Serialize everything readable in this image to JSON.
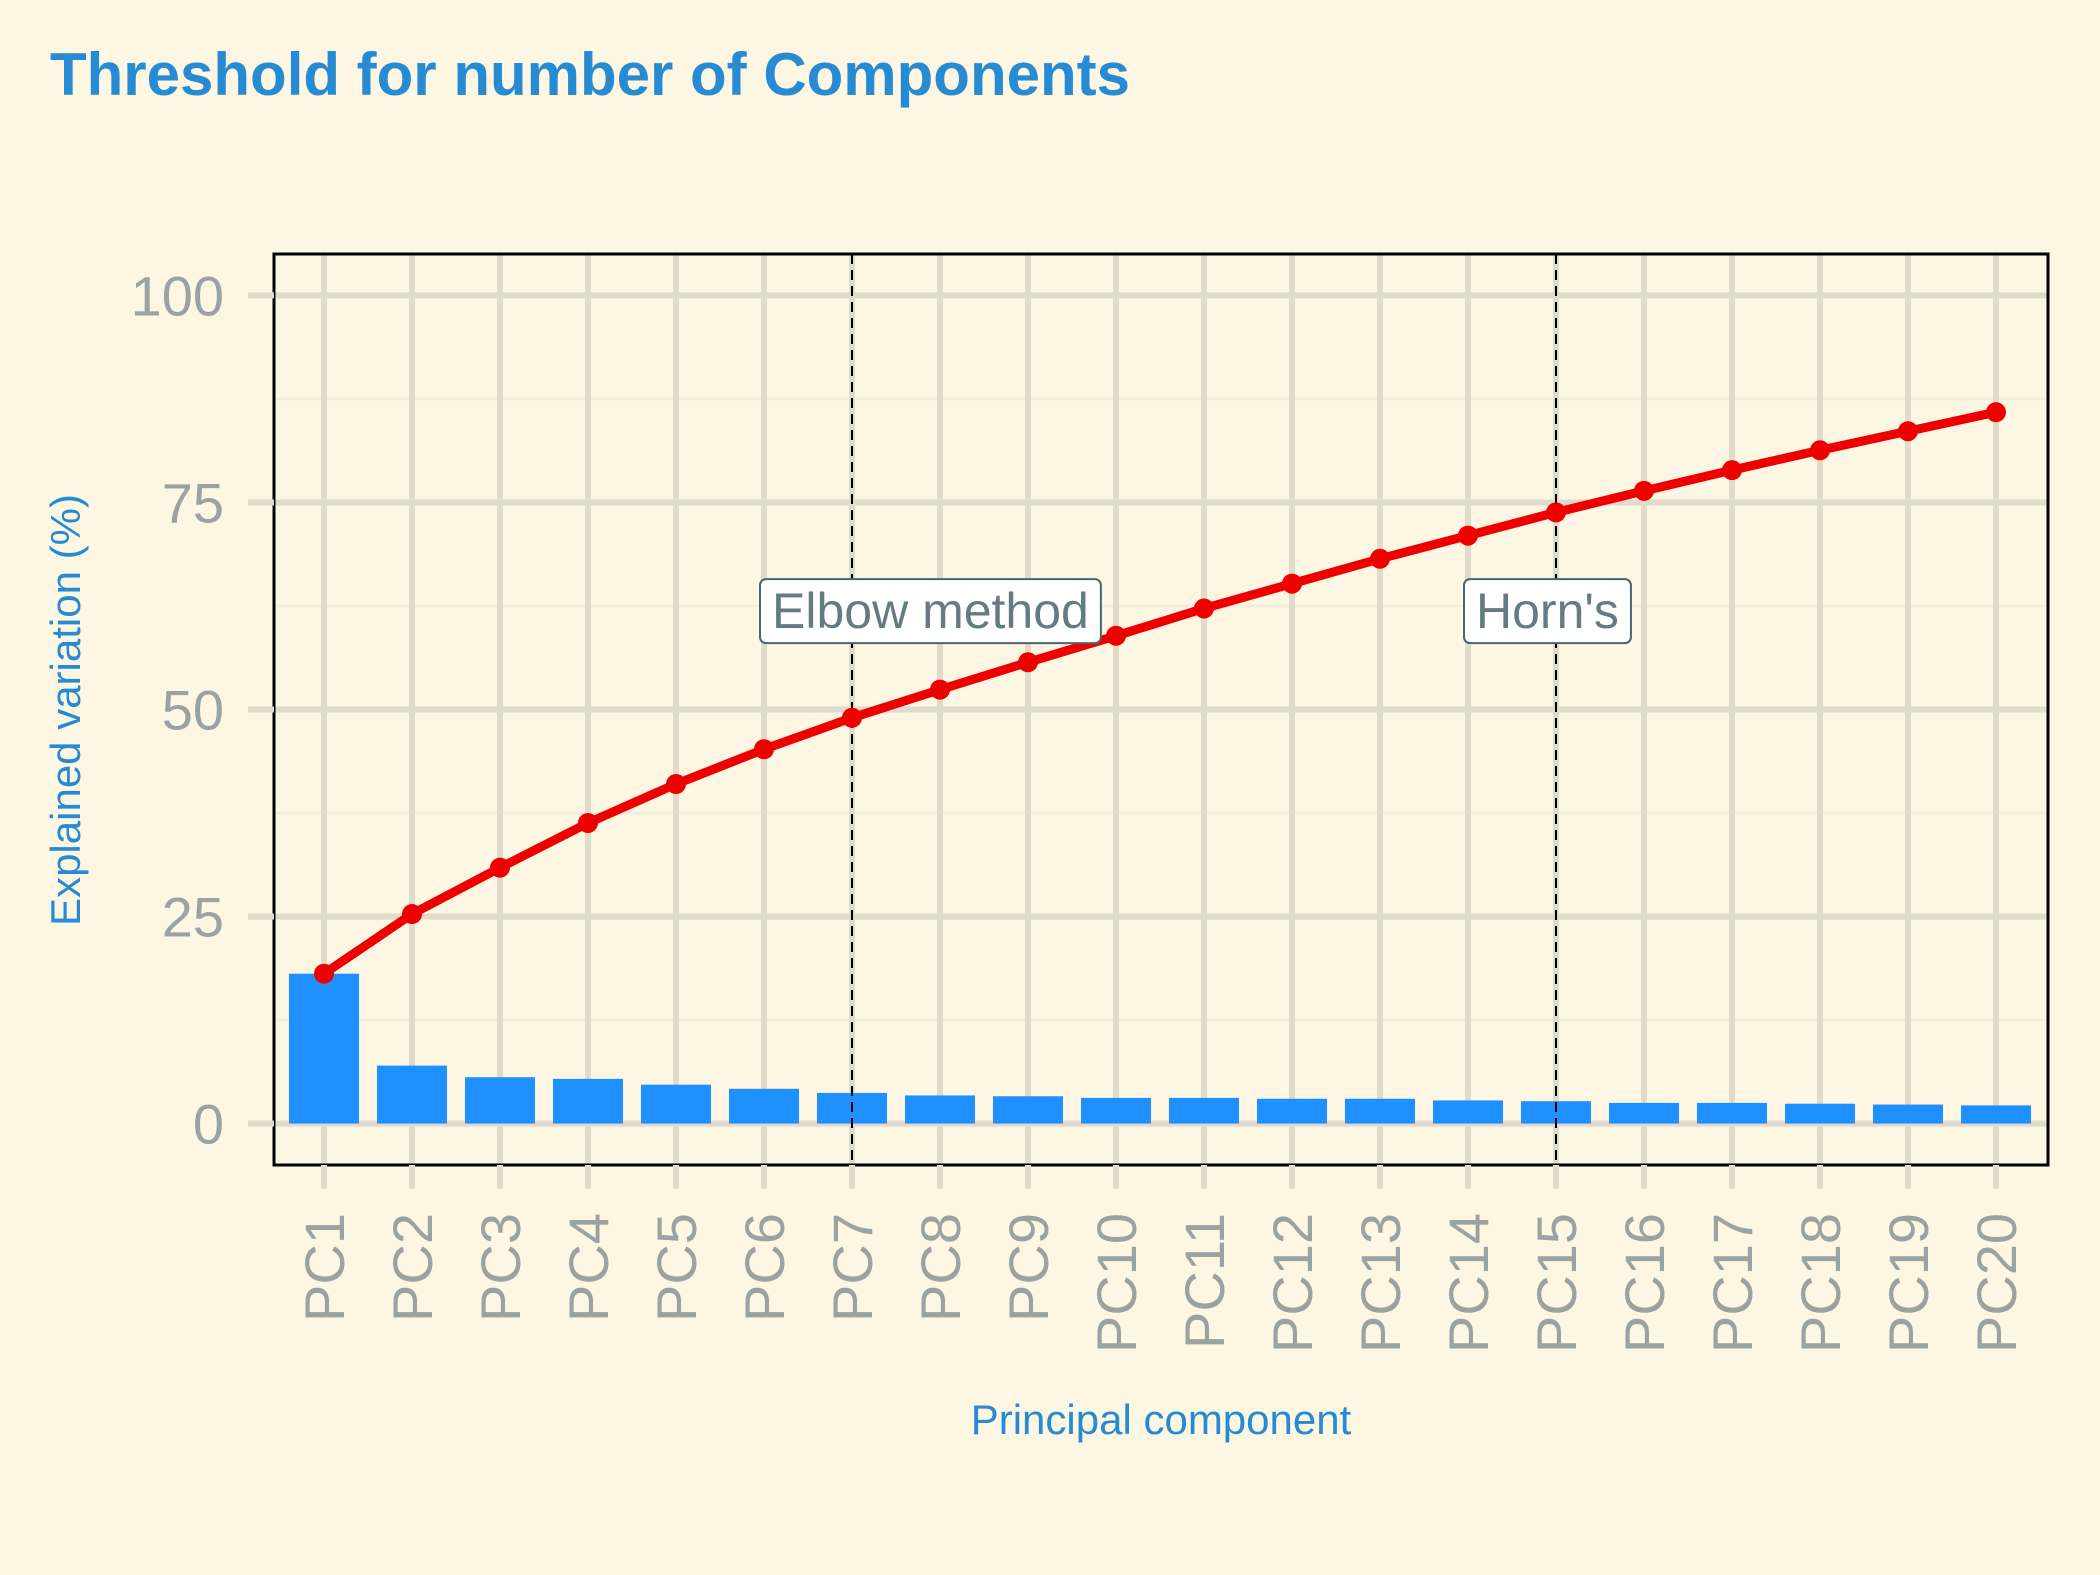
{
  "chart_data": {
    "type": "bar",
    "title": "Threshold for number of Components",
    "xlabel": "Principal component",
    "ylabel": "Explained variation (%)",
    "ylim": [
      -5,
      105
    ],
    "yticks": [
      0,
      25,
      50,
      75,
      100
    ],
    "grid": true,
    "categories": [
      "PC1",
      "PC2",
      "PC3",
      "PC4",
      "PC5",
      "PC6",
      "PC7",
      "PC8",
      "PC9",
      "PC10",
      "PC11",
      "PC12",
      "PC13",
      "PC14",
      "PC15",
      "PC16",
      "PC17",
      "PC18",
      "PC19",
      "PC20"
    ],
    "series": [
      {
        "kind": "bar",
        "values": [
          18.1,
          7.0,
          5.6,
          5.4,
          4.7,
          4.2,
          3.7,
          3.4,
          3.3,
          3.1,
          3.1,
          3.0,
          3.0,
          2.8,
          2.7,
          2.5,
          2.5,
          2.4,
          2.3,
          2.2
        ]
      },
      {
        "kind": "line",
        "values": [
          18.1,
          25.3,
          30.9,
          36.3,
          41.0,
          45.2,
          49.0,
          52.4,
          55.7,
          58.9,
          62.2,
          65.2,
          68.2,
          71.0,
          73.8,
          76.4,
          78.9,
          81.3,
          83.6,
          85.9
        ]
      }
    ],
    "annotations": [
      {
        "label": "Elbow method",
        "x": "PC7",
        "y": 62
      },
      {
        "label": "Horn's",
        "x": "PC15",
        "y": 62
      }
    ],
    "colors": {
      "background": "#fdf6e3",
      "bar": "#1e90ff",
      "line": "#ee0000",
      "grid_major": "#e0dccb",
      "grid_minor": "#f3eedc",
      "title": "#268bd2",
      "tick": "#9aa3a0",
      "annotation_text": "#657b83"
    }
  }
}
